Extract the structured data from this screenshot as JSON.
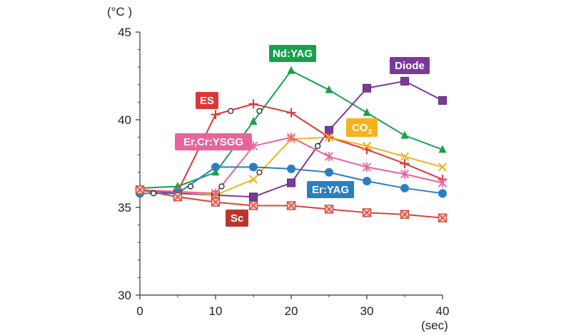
{
  "chart_data": {
    "type": "line",
    "y_unit": "(°C )",
    "x_unit": "(sec)",
    "xlim": [
      0,
      40
    ],
    "ylim": [
      30,
      45
    ],
    "x_ticks": [
      "0",
      "10",
      "20",
      "30",
      "40"
    ],
    "y_ticks": [
      "30",
      "35",
      "40",
      "45"
    ],
    "grid": false,
    "series": [
      {
        "name": "Nd:YAG",
        "label_main": "Nd:YAG",
        "label_sub": "",
        "color": "#1aa04a",
        "marker": "triangle",
        "x": [
          0,
          5,
          10,
          15,
          20,
          25,
          30,
          35,
          40
        ],
        "y": [
          36.1,
          36.2,
          37.0,
          39.9,
          42.8,
          41.7,
          40.4,
          39.1,
          38.3
        ]
      },
      {
        "name": "Diode",
        "label_main": "Diode",
        "label_sub": "",
        "color": "#7b3a9a",
        "marker": "square",
        "x": [
          0,
          5,
          10,
          15,
          20,
          25,
          30,
          35,
          40
        ],
        "y": [
          36.0,
          35.8,
          35.7,
          35.6,
          36.4,
          39.4,
          41.8,
          42.2,
          41.1
        ]
      },
      {
        "name": "ES",
        "label_main": "ES",
        "label_sub": "",
        "color": "#e03535",
        "marker": "plus",
        "x": [
          0,
          5,
          10,
          15,
          20,
          25,
          30,
          35,
          40
        ],
        "y": [
          36.0,
          35.9,
          40.3,
          40.9,
          40.4,
          39.0,
          38.3,
          37.5,
          36.6
        ]
      },
      {
        "name": "CO2",
        "label_main": "CO",
        "label_sub": "2",
        "color": "#f5b21c",
        "marker": "x",
        "x": [
          0,
          5,
          10,
          15,
          20,
          25,
          30,
          35,
          40
        ],
        "y": [
          36.0,
          35.9,
          35.7,
          36.6,
          38.9,
          39.0,
          38.5,
          37.9,
          37.3
        ]
      },
      {
        "name": "Er,Cr:YSGG",
        "label_main": "Er,Cr:YSGG",
        "label_sub": "",
        "color": "#e8649a",
        "marker": "asterisk",
        "x": [
          0,
          5,
          10,
          15,
          20,
          25,
          30,
          35,
          40
        ],
        "y": [
          36.0,
          35.9,
          35.8,
          38.5,
          39.0,
          37.9,
          37.3,
          36.9,
          36.4
        ]
      },
      {
        "name": "Er:YAG",
        "label_main": "Er:YAG",
        "label_sub": "",
        "color": "#2a7fc1",
        "marker": "circle",
        "x": [
          0,
          5,
          10,
          15,
          20,
          25,
          30,
          35,
          40
        ],
        "y": [
          35.8,
          35.8,
          37.3,
          37.3,
          37.2,
          37.0,
          36.5,
          36.1,
          35.8
        ]
      },
      {
        "name": "Sc",
        "label_main": "Sc",
        "label_sub": "",
        "color": "#d9453a",
        "marker": "boxx",
        "x": [
          0,
          5,
          10,
          15,
          20,
          25,
          30,
          35,
          40
        ],
        "y": [
          36.0,
          35.6,
          35.3,
          35.1,
          35.1,
          34.9,
          34.7,
          34.6,
          34.4
        ]
      }
    ],
    "annotations": {
      "open_circles": [
        {
          "x": 1.8,
          "y": 35.8
        },
        {
          "x": 6.7,
          "y": 36.2
        },
        {
          "x": 10.8,
          "y": 36.2
        },
        {
          "x": 12.0,
          "y": 40.5
        },
        {
          "x": 15.8,
          "y": 40.5
        },
        {
          "x": 15.8,
          "y": 37.0
        },
        {
          "x": 23.5,
          "y": 38.5
        }
      ]
    },
    "label_fills": {
      "Nd:YAG": "#17a14d",
      "Diode": "#7b3a9a",
      "ES": "#e03535",
      "CO2": "#f5b21c",
      "Er,Cr:YSGG": "#e8649a",
      "Er:YAG": "#2a7fc1",
      "Sc": "#b8362e"
    }
  }
}
